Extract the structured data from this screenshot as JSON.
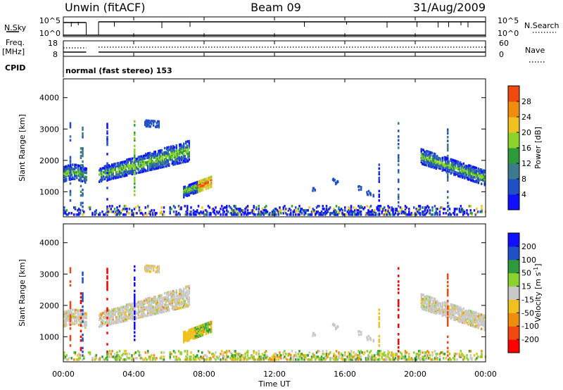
{
  "header": {
    "station": "Unwin (fitACF)",
    "beam": "Beam 09",
    "date": "31/Aug/2009"
  },
  "status_panels": {
    "nsky_label": "N.Sky",
    "nsky_ticks": [
      "10^5",
      "10^0"
    ],
    "nsearch_label": "N.Search",
    "nsearch_ticks": [
      "10^5",
      "10^0"
    ],
    "freq_label": "Freq.",
    "freq_unit": "[MHz]",
    "freq_ticks": [
      "18",
      "8"
    ],
    "nave_label": "Nave",
    "nave_ticks": [
      "60",
      "0"
    ],
    "cpid_label": "CPID",
    "cpid_text": "normal (fast stereo) 153"
  },
  "colors": {
    "power": [
      "#1010ff",
      "#2050c8",
      "#3c7a8c",
      "#2d9a3c",
      "#8cd22c",
      "#f0c020",
      "#f08c10",
      "#f04a10",
      "#ff0000"
    ],
    "velocity": [
      "#ff0000",
      "#f04a10",
      "#f08c10",
      "#f0c020",
      "#c8c8c8",
      "#8cd22c",
      "#2d9a3c",
      "#2050c8",
      "#1010ff"
    ],
    "ground": "#c8c8c8"
  },
  "chart_data": [
    {
      "type": "heatmap",
      "name": "power",
      "ylabel": "Slant Range [km]",
      "ylim": [
        200,
        4600
      ],
      "xlim": [
        0,
        24
      ],
      "yticks": [
        "1000",
        "2000",
        "3000",
        "4000"
      ],
      "colorbar_label": "Power [dB]",
      "colorbar_ticks": [
        "4",
        "8",
        "12",
        "16",
        "20",
        "24",
        "28"
      ],
      "clim": [
        0,
        30
      ]
    },
    {
      "type": "heatmap",
      "name": "velocity",
      "ylabel": "Slant Range [km]",
      "ylim": [
        200,
        4600
      ],
      "xlim": [
        0,
        24
      ],
      "yticks": [
        "1000",
        "2000",
        "3000",
        "4000"
      ],
      "colorbar_label": "Velocity [m s^-1]",
      "colorbar_ticks": [
        "200",
        "100",
        "50",
        "15",
        "-15",
        "-50",
        "-100",
        "-200"
      ],
      "clim": [
        -200,
        200
      ]
    }
  ],
  "time_axis": {
    "label": "Time UT",
    "ticks": [
      "00:00",
      "04:00",
      "08:00",
      "12:00",
      "16:00",
      "20:00",
      "00:00"
    ]
  }
}
